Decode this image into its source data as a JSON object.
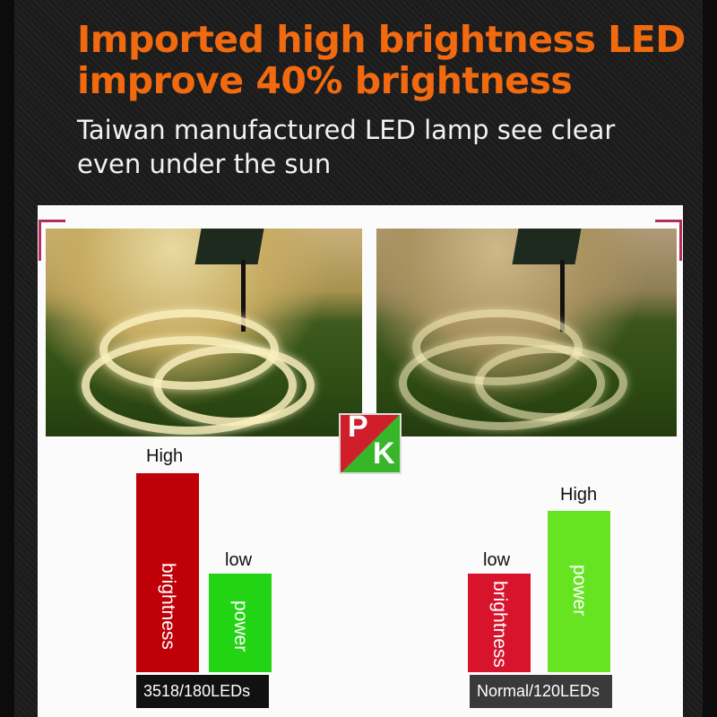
{
  "headline": [
    "Imported high brightness LED",
    "improve 40% brightness"
  ],
  "subheadline": [
    "Taiwan manufactured LED lamp see clear",
    "even under the sun"
  ],
  "logo": {
    "text": [
      "P",
      "K"
    ]
  },
  "comparison": {
    "left": {
      "brightness_label": "High",
      "brightness_text": "brightness",
      "power_label": "low",
      "power_text": "power",
      "tag": "3518/180LEDs",
      "brightness_level": 1.0,
      "power_level": 0.5
    },
    "right": {
      "brightness_label": "low",
      "brightness_text": "brightness",
      "power_label": "High",
      "power_text": "power",
      "tag": "Normal/120LEDs",
      "brightness_level": 0.5,
      "power_level": 0.81
    }
  },
  "colors": {
    "headline": "#f26a10",
    "red": "#c00008",
    "red2": "#d8142c",
    "green": "#22d414",
    "green2": "#66e422"
  }
}
